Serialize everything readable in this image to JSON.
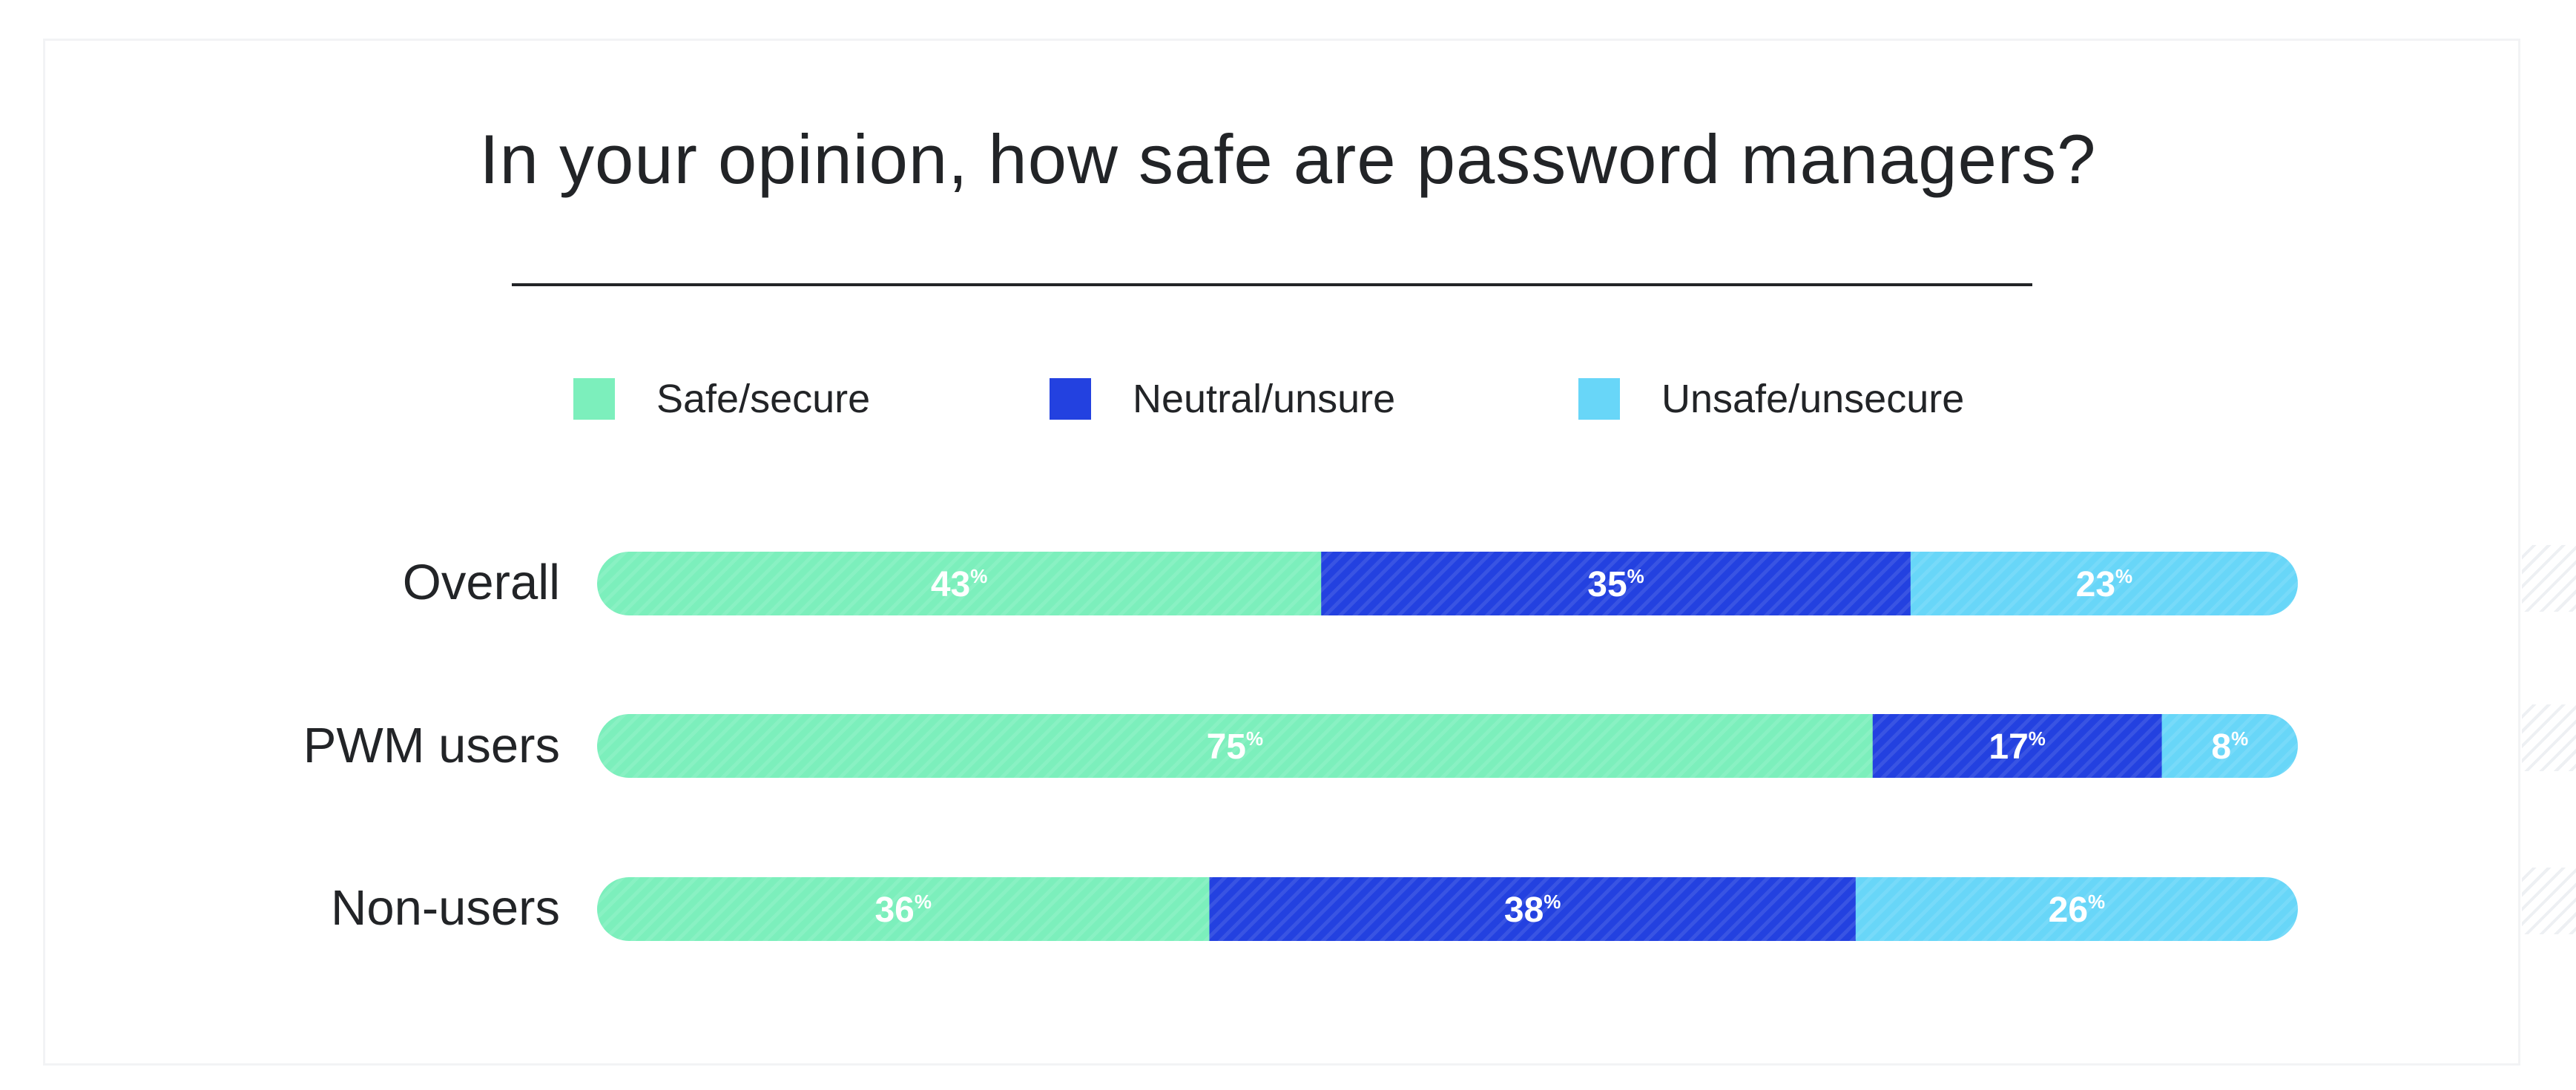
{
  "chart_data": {
    "type": "bar",
    "orientation": "horizontal",
    "stacked": true,
    "title": "In your opinion, how safe are password managers?",
    "categories": [
      "Overall",
      "PWM users",
      "Non-users"
    ],
    "series": [
      {
        "name": "Safe/secure",
        "color": "#7cefbc",
        "values": [
          43,
          75,
          36
        ]
      },
      {
        "name": "Neutral/unsure",
        "color": "#2341e0",
        "values": [
          35,
          17,
          38
        ]
      },
      {
        "name": "Unsafe/unsecure",
        "color": "#68d6f8",
        "values": [
          23,
          8,
          26
        ]
      }
    ],
    "value_suffix": "%",
    "legend_position": "top",
    "grid": false
  }
}
